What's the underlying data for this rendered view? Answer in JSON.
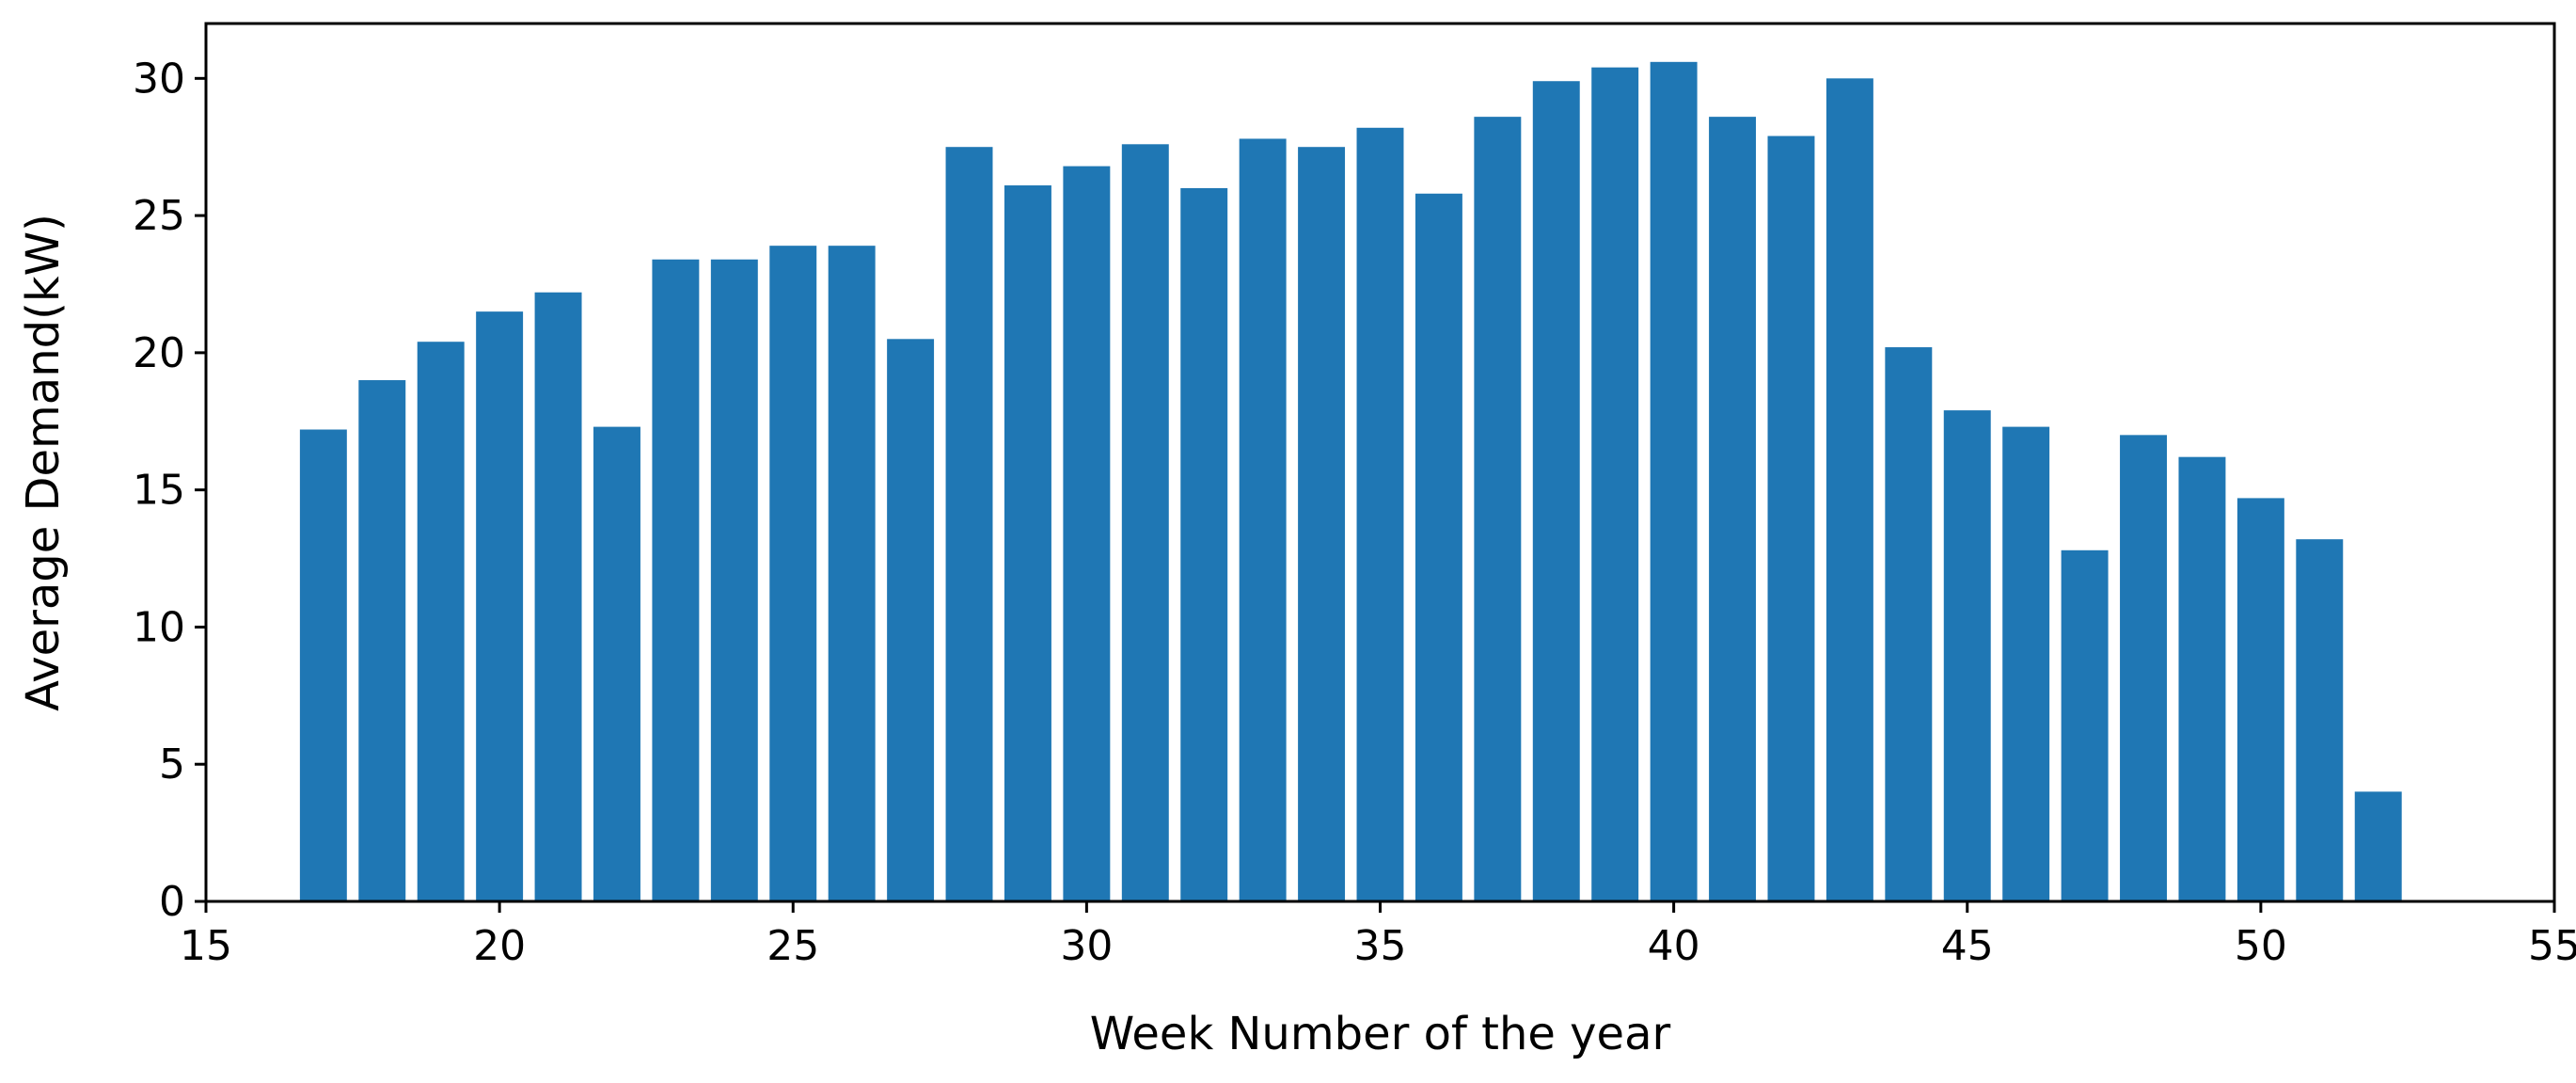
{
  "chart_data": {
    "type": "bar",
    "xlabel": "Week Number of the year",
    "ylabel": "Average Demand(kW)",
    "xlim": [
      15,
      55
    ],
    "ylim": [
      0,
      32
    ],
    "x_ticks": [
      15,
      20,
      25,
      30,
      35,
      40,
      45,
      50,
      55
    ],
    "y_ticks": [
      0,
      5,
      10,
      15,
      20,
      25,
      30
    ],
    "grid": false,
    "bar_color": "#1f77b4",
    "x": [
      17,
      18,
      19,
      20,
      21,
      22,
      23,
      24,
      25,
      26,
      27,
      28,
      29,
      30,
      31,
      32,
      33,
      34,
      35,
      36,
      37,
      38,
      39,
      40,
      41,
      42,
      43,
      44,
      45,
      46,
      47,
      48,
      49,
      50,
      51,
      52
    ],
    "values": [
      17.2,
      19.0,
      20.4,
      21.5,
      22.2,
      17.3,
      23.4,
      23.4,
      23.9,
      23.9,
      20.5,
      27.5,
      26.1,
      26.8,
      27.6,
      26.0,
      27.8,
      27.5,
      28.2,
      25.8,
      28.6,
      29.9,
      30.4,
      30.6,
      28.6,
      27.9,
      30.0,
      20.2,
      17.9,
      17.3,
      12.8,
      17.0,
      16.2,
      14.7,
      13.2,
      4.0
    ]
  }
}
